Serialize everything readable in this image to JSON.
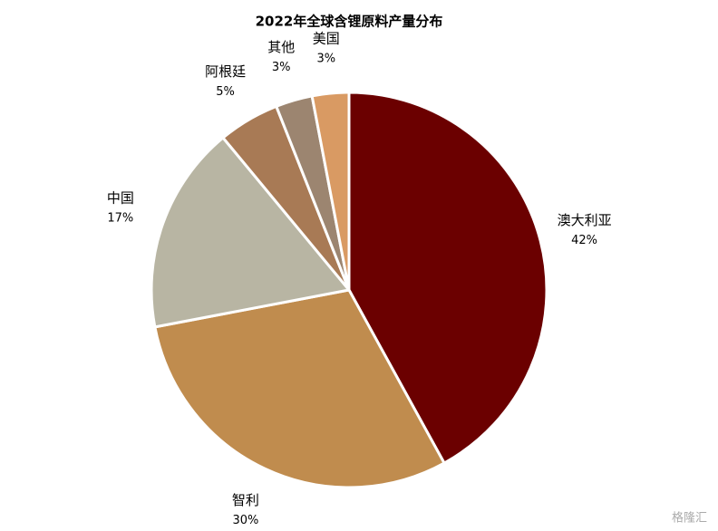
{
  "chart_data": {
    "type": "pie",
    "title": "2022年全球含锂原料产量分布",
    "categories": [
      "澳大利亚",
      "智利",
      "中国",
      "阿根廷",
      "其他",
      "美国"
    ],
    "values": [
      42,
      30,
      17,
      5,
      3,
      3
    ],
    "value_labels": [
      "42%",
      "30%",
      "17%",
      "5%",
      "3%",
      "3%"
    ],
    "colors": [
      "#6b0000",
      "#c08c4e",
      "#b8b5a3",
      "#a87a55",
      "#9c8570",
      "#d99a63"
    ]
  },
  "watermark": "格隆汇"
}
